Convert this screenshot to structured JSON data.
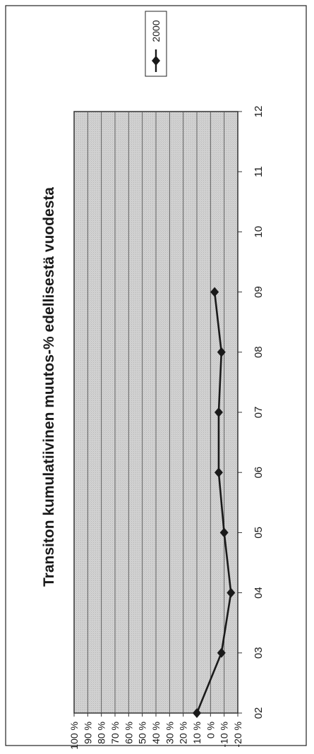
{
  "chart_data": {
    "type": "line",
    "title": "Transiton kumulatiivinen muutos-% edellisestä vuodesta",
    "xlabel": "",
    "ylabel": "",
    "categories": [
      "02",
      "03",
      "04",
      "05",
      "06",
      "07",
      "08",
      "09",
      "10",
      "11",
      "12"
    ],
    "y_ticks": [
      "100 %",
      "90 %",
      "80 %",
      "70 %",
      "60 %",
      "50 %",
      "40 %",
      "30 %",
      "20 %",
      "10 %",
      "0 %",
      "-10 %",
      "-20 %"
    ],
    "ylim": [
      -20,
      100
    ],
    "grid": true,
    "legend_position": "top-right",
    "orientation": "rotated-90-ccw",
    "series": [
      {
        "name": "2000",
        "color": "#1a1a1a",
        "marker": "diamond",
        "values": [
          10,
          -8,
          -15,
          -10,
          -6,
          -6,
          -8,
          -3,
          null,
          null,
          null
        ]
      }
    ],
    "plot_background": "#d4d4d4"
  }
}
